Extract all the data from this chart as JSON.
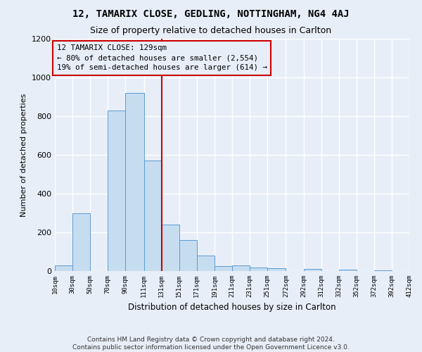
{
  "title1": "12, TAMARIX CLOSE, GEDLING, NOTTINGHAM, NG4 4AJ",
  "title2": "Size of property relative to detached houses in Carlton",
  "xlabel": "Distribution of detached houses by size in Carlton",
  "ylabel": "Number of detached properties",
  "footnote": "Contains HM Land Registry data © Crown copyright and database right 2024.\nContains public sector information licensed under the Open Government Licence v3.0.",
  "bin_edges": [
    10,
    30,
    50,
    70,
    90,
    111,
    131,
    151,
    171,
    191,
    211,
    231,
    251,
    272,
    292,
    312,
    332,
    352,
    372,
    392,
    412
  ],
  "bar_heights": [
    30,
    300,
    0,
    830,
    920,
    570,
    240,
    160,
    80,
    25,
    30,
    20,
    15,
    0,
    10,
    0,
    8,
    0,
    5,
    0
  ],
  "bar_color": "#c6ddf0",
  "bar_edge_color": "#5b9bd5",
  "tick_labels": [
    "10sqm",
    "30sqm",
    "50sqm",
    "70sqm",
    "90sqm",
    "111sqm",
    "131sqm",
    "151sqm",
    "171sqm",
    "191sqm",
    "211sqm",
    "231sqm",
    "251sqm",
    "272sqm",
    "292sqm",
    "312sqm",
    "332sqm",
    "352sqm",
    "372sqm",
    "392sqm",
    "412sqm"
  ],
  "vline_x": 131,
  "vline_color": "#cc0000",
  "annotation_text": "12 TAMARIX CLOSE: 129sqm\n← 80% of detached houses are smaller (2,554)\n19% of semi-detached houses are larger (614) →",
  "annotation_box_color": "#cc0000",
  "annotation_bg": "#e8eef8",
  "ylim": [
    0,
    1200
  ],
  "yticks": [
    0,
    200,
    400,
    600,
    800,
    1000,
    1200
  ],
  "background_color": "#e8eef8",
  "grid_color": "#ffffff",
  "title1_fontsize": 10,
  "title2_fontsize": 9,
  "footnote_fontsize": 6.5
}
